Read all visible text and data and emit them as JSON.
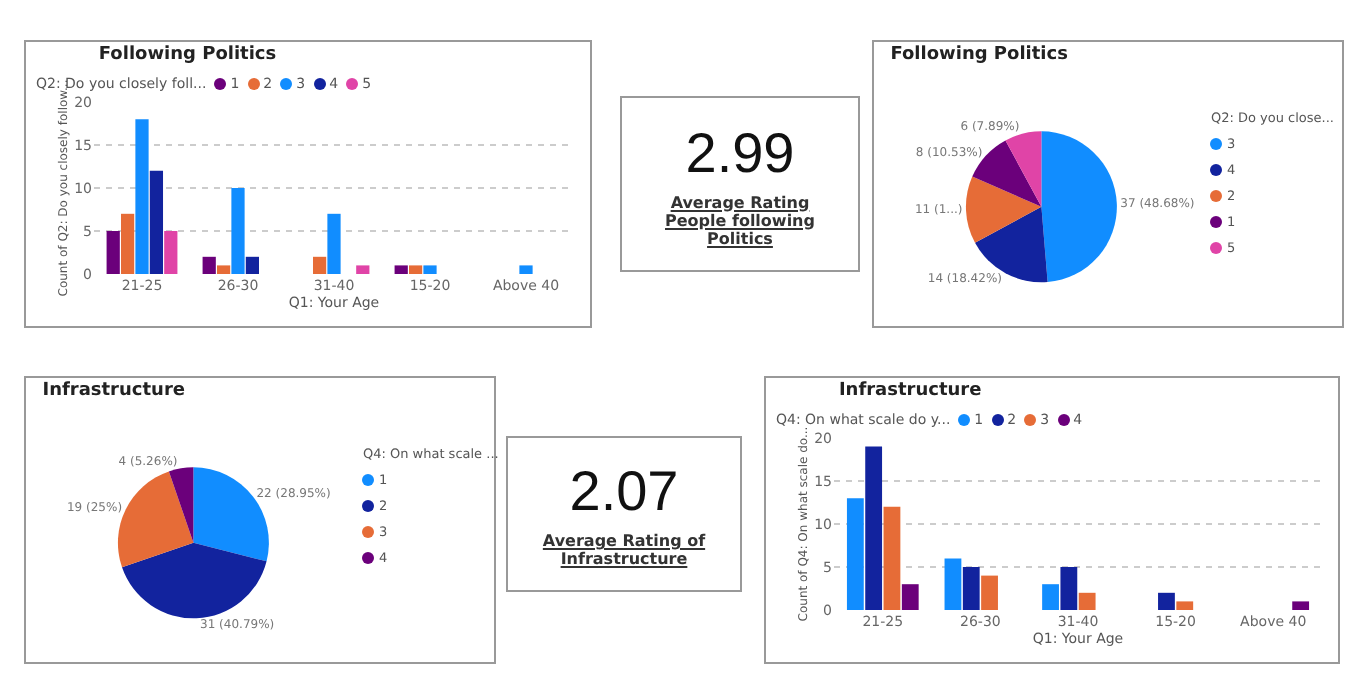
{
  "chart_data": [
    {
      "type": "bar",
      "title": "Following Politics",
      "xlabel": "Q1: Your Age",
      "ylabel": "Count of Q2: Do you closely follow...",
      "legend_title": "Q2: Do you closely foll...",
      "categories": [
        "21-25",
        "26-30",
        "31-40",
        "15-20",
        "Above 40"
      ],
      "series": [
        {
          "name": "1",
          "color": "#6b007b",
          "values": [
            5,
            2,
            null,
            1,
            null
          ]
        },
        {
          "name": "2",
          "color": "#e66c37",
          "values": [
            7,
            1,
            2,
            1,
            null
          ]
        },
        {
          "name": "3",
          "color": "#118dff",
          "values": [
            18,
            10,
            7,
            1,
            1
          ]
        },
        {
          "name": "4",
          "color": "#12239e",
          "values": [
            12,
            2,
            null,
            null,
            null
          ]
        },
        {
          "name": "5",
          "color": "#e044a7",
          "values": [
            5,
            null,
            1,
            null,
            null
          ]
        }
      ],
      "ylim": [
        0,
        20
      ],
      "yticks": [
        0,
        5,
        10,
        15,
        20
      ],
      "grid": "y",
      "legend": "top left"
    },
    {
      "type": "other",
      "title": "Average Rating People following Politics",
      "annotations": [
        "2.99"
      ]
    },
    {
      "type": "pie",
      "title": "Following Politics",
      "legend_title": "Q2: Do you close...",
      "categories": [
        "3",
        "4",
        "2",
        "1",
        "5"
      ],
      "values": [
        37,
        14,
        11,
        8,
        6
      ],
      "colors": [
        "#118dff",
        "#12239e",
        "#e66c37",
        "#6b007b",
        "#e044a7"
      ],
      "value_labels": [
        "37 (48.68%)",
        "14 (18.42%)",
        "11 (1...)",
        "8 (10.53%)",
        "6 (7.89%)"
      ],
      "legend": "right"
    },
    {
      "type": "pie",
      "title": "Infrastructure",
      "legend_title": "Q4: On what scale ...",
      "categories": [
        "1",
        "2",
        "3",
        "4"
      ],
      "values": [
        22,
        31,
        19,
        4
      ],
      "colors": [
        "#118dff",
        "#12239e",
        "#e66c37",
        "#6b007b"
      ],
      "value_labels": [
        "22 (28.95%)",
        "31 (40.79%)",
        "19 (25%)",
        "4 (5.26%)"
      ],
      "legend": "right"
    },
    {
      "type": "other",
      "title": "Average Rating of Infrastructure",
      "annotations": [
        "2.07"
      ]
    },
    {
      "type": "bar",
      "title": "Infrastructure",
      "xlabel": "Q1: Your Age",
      "ylabel": "Count of Q4: On what scale do...",
      "legend_title": "Q4: On what scale do y...",
      "categories": [
        "21-25",
        "26-30",
        "31-40",
        "15-20",
        "Above 40"
      ],
      "series": [
        {
          "name": "1",
          "color": "#118dff",
          "values": [
            13,
            6,
            3,
            null,
            null
          ]
        },
        {
          "name": "2",
          "color": "#12239e",
          "values": [
            19,
            5,
            5,
            2,
            null
          ]
        },
        {
          "name": "3",
          "color": "#e66c37",
          "values": [
            12,
            4,
            2,
            1,
            null
          ]
        },
        {
          "name": "4",
          "color": "#6b007b",
          "values": [
            3,
            null,
            null,
            null,
            1
          ]
        }
      ],
      "ylim": [
        0,
        20
      ],
      "yticks": [
        0,
        5,
        10,
        15,
        20
      ],
      "grid": "y",
      "legend": "top left"
    }
  ]
}
